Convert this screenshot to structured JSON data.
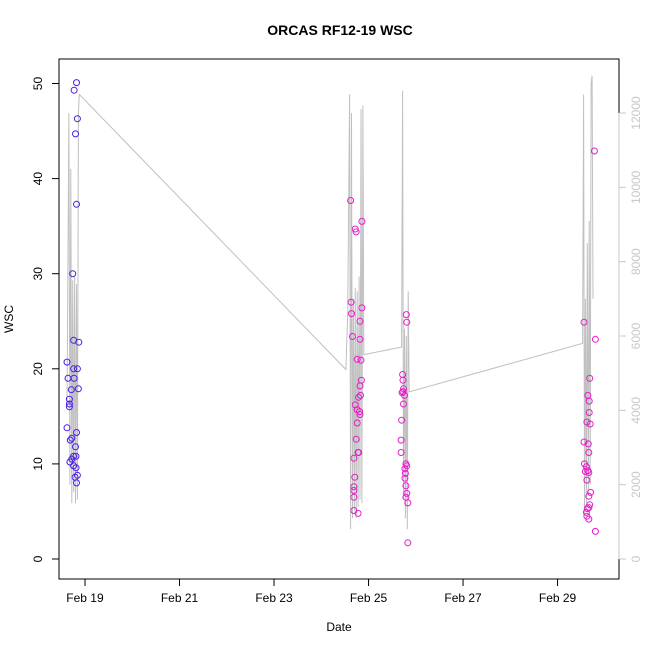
{
  "chart_data": {
    "type": "scatter",
    "title": "ORCAS RF12-19 WSC",
    "xlabel": "Date",
    "ylabel": "WSC",
    "x_ticks": [
      "Feb 19",
      "Feb 21",
      "Feb 23",
      "Feb 25",
      "Feb 27",
      "Feb 29"
    ],
    "x_tick_days": [
      19,
      21,
      23,
      25,
      27,
      29
    ],
    "xlim_days": [
      18.45,
      30.3
    ],
    "ylim": [
      0,
      51
    ],
    "y_ticks": [
      0,
      10,
      20,
      30,
      40,
      50
    ],
    "y2_ticks": [
      0,
      2000,
      4000,
      6000,
      8000,
      10000,
      12000
    ],
    "y2lim": [
      0,
      12000
    ],
    "colors": {
      "flight1": "#4b1ee6",
      "other_flights": "#e61ec8",
      "trace": "#c0c0c0",
      "right_axis": "#c8c8c8"
    },
    "series": [
      {
        "color": "#4b1ee6",
        "points": [
          [
            18.82,
            50.1
          ],
          [
            18.77,
            49.3
          ],
          [
            18.8,
            44.7
          ],
          [
            18.84,
            46.3
          ],
          [
            18.82,
            37.3
          ],
          [
            18.74,
            30.0
          ],
          [
            18.76,
            23.0
          ],
          [
            18.87,
            22.8
          ],
          [
            18.62,
            20.7
          ],
          [
            18.76,
            20.0
          ],
          [
            18.84,
            20.0
          ],
          [
            18.64,
            19.0
          ],
          [
            18.77,
            19.0
          ],
          [
            18.71,
            17.8
          ],
          [
            18.86,
            17.9
          ],
          [
            18.67,
            16.8
          ],
          [
            18.67,
            16.3
          ],
          [
            18.67,
            16.0
          ],
          [
            18.62,
            13.8
          ],
          [
            18.82,
            13.3
          ],
          [
            18.72,
            12.7
          ],
          [
            18.69,
            12.5
          ],
          [
            18.8,
            11.8
          ],
          [
            18.76,
            10.8
          ],
          [
            18.81,
            10.8
          ],
          [
            18.72,
            10.5
          ],
          [
            18.68,
            10.2
          ],
          [
            18.76,
            9.8
          ],
          [
            18.81,
            9.6
          ],
          [
            18.79,
            8.6
          ],
          [
            18.84,
            8.8
          ],
          [
            18.82,
            8.0
          ]
        ]
      },
      {
        "color": "#e61ec8",
        "points": [
          [
            24.62,
            37.7
          ],
          [
            24.72,
            34.7
          ],
          [
            24.74,
            34.4
          ],
          [
            24.86,
            35.5
          ],
          [
            24.63,
            27.0
          ],
          [
            24.64,
            25.8
          ],
          [
            24.82,
            25.0
          ],
          [
            24.86,
            26.4
          ],
          [
            24.66,
            23.4
          ],
          [
            24.82,
            23.1
          ],
          [
            24.76,
            21.0
          ],
          [
            24.84,
            20.9
          ],
          [
            24.85,
            18.8
          ],
          [
            24.82,
            18.2
          ],
          [
            24.79,
            17.0
          ],
          [
            24.83,
            17.2
          ],
          [
            24.72,
            16.2
          ],
          [
            24.76,
            15.7
          ],
          [
            24.81,
            15.5
          ],
          [
            24.82,
            15.2
          ],
          [
            24.76,
            14.3
          ],
          [
            24.74,
            12.6
          ],
          [
            24.78,
            11.2
          ],
          [
            24.79,
            11.2
          ],
          [
            24.69,
            10.6
          ],
          [
            24.71,
            8.6
          ],
          [
            24.69,
            7.6
          ],
          [
            24.69,
            7.2
          ],
          [
            24.69,
            6.5
          ],
          [
            24.69,
            5.1
          ],
          [
            24.78,
            4.8
          ],
          [
            25.72,
            19.4
          ],
          [
            25.73,
            18.8
          ],
          [
            25.74,
            17.9
          ],
          [
            25.71,
            17.5
          ],
          [
            25.73,
            17.6
          ],
          [
            25.76,
            17.2
          ],
          [
            25.74,
            16.3
          ],
          [
            25.7,
            14.6
          ],
          [
            25.8,
            25.7
          ],
          [
            25.81,
            24.9
          ],
          [
            25.69,
            12.5
          ],
          [
            25.69,
            11.2
          ],
          [
            25.79,
            10.0
          ],
          [
            25.81,
            9.8
          ],
          [
            25.77,
            9.5
          ],
          [
            25.78,
            9.0
          ],
          [
            25.77,
            8.5
          ],
          [
            25.79,
            7.7
          ],
          [
            25.81,
            6.9
          ],
          [
            25.79,
            6.5
          ],
          [
            25.83,
            5.9
          ],
          [
            25.83,
            1.7
          ],
          [
            29.56,
            24.9
          ],
          [
            29.78,
            42.9
          ],
          [
            29.8,
            23.1
          ],
          [
            29.68,
            19.0
          ],
          [
            29.64,
            17.2
          ],
          [
            29.67,
            16.6
          ],
          [
            29.67,
            15.4
          ],
          [
            29.62,
            14.4
          ],
          [
            29.69,
            14.2
          ],
          [
            29.56,
            12.3
          ],
          [
            29.65,
            12.1
          ],
          [
            29.66,
            11.2
          ],
          [
            29.57,
            10.0
          ],
          [
            29.61,
            9.7
          ],
          [
            29.64,
            9.3
          ],
          [
            29.59,
            9.2
          ],
          [
            29.66,
            9.1
          ],
          [
            29.7,
            7.0
          ],
          [
            29.66,
            6.6
          ],
          [
            29.62,
            8.3
          ],
          [
            29.66,
            5.4
          ],
          [
            29.63,
            5.3
          ],
          [
            29.68,
            5.7
          ],
          [
            29.61,
            4.9
          ],
          [
            29.62,
            4.5
          ],
          [
            29.66,
            4.2
          ],
          [
            29.8,
            2.9
          ]
        ]
      }
    ],
    "trace_series": {
      "axis": "right",
      "points": [
        [
          18.62,
          4100
        ],
        [
          18.66,
          12000
        ],
        [
          18.68,
          2000
        ],
        [
          18.7,
          10500
        ],
        [
          18.72,
          1500
        ],
        [
          18.74,
          7500
        ],
        [
          18.76,
          1800
        ],
        [
          18.78,
          7600
        ],
        [
          18.8,
          1500
        ],
        [
          18.82,
          7400
        ],
        [
          18.84,
          1600
        ],
        [
          18.86,
          12000
        ],
        [
          18.88,
          12500
        ],
        [
          24.52,
          5100
        ],
        [
          24.56,
          6600
        ],
        [
          24.6,
          12500
        ],
        [
          24.62,
          800
        ],
        [
          24.64,
          12000
        ],
        [
          24.66,
          1100
        ],
        [
          24.68,
          7000
        ],
        [
          24.7,
          1300
        ],
        [
          24.72,
          7300
        ],
        [
          24.74,
          1100
        ],
        [
          24.76,
          7200
        ],
        [
          24.78,
          1400
        ],
        [
          24.8,
          7600
        ],
        [
          24.82,
          1600
        ],
        [
          24.84,
          12100
        ],
        [
          24.86,
          1500
        ],
        [
          24.88,
          12200
        ],
        [
          24.9,
          5500
        ],
        [
          25.7,
          5700
        ],
        [
          25.72,
          12600
        ],
        [
          25.74,
          1600
        ],
        [
          25.76,
          6200
        ],
        [
          25.78,
          1100
        ],
        [
          25.8,
          6000
        ],
        [
          25.82,
          800
        ],
        [
          25.84,
          7200
        ],
        [
          25.86,
          4500
        ],
        [
          29.53,
          5800
        ],
        [
          29.55,
          12500
        ],
        [
          29.57,
          1200
        ],
        [
          29.59,
          7000
        ],
        [
          29.61,
          1500
        ],
        [
          29.63,
          8500
        ],
        [
          29.65,
          1700
        ],
        [
          29.67,
          9100
        ],
        [
          29.69,
          2000
        ],
        [
          29.71,
          12800
        ],
        [
          29.73,
          13000
        ],
        [
          29.75,
          7000
        ]
      ]
    }
  }
}
